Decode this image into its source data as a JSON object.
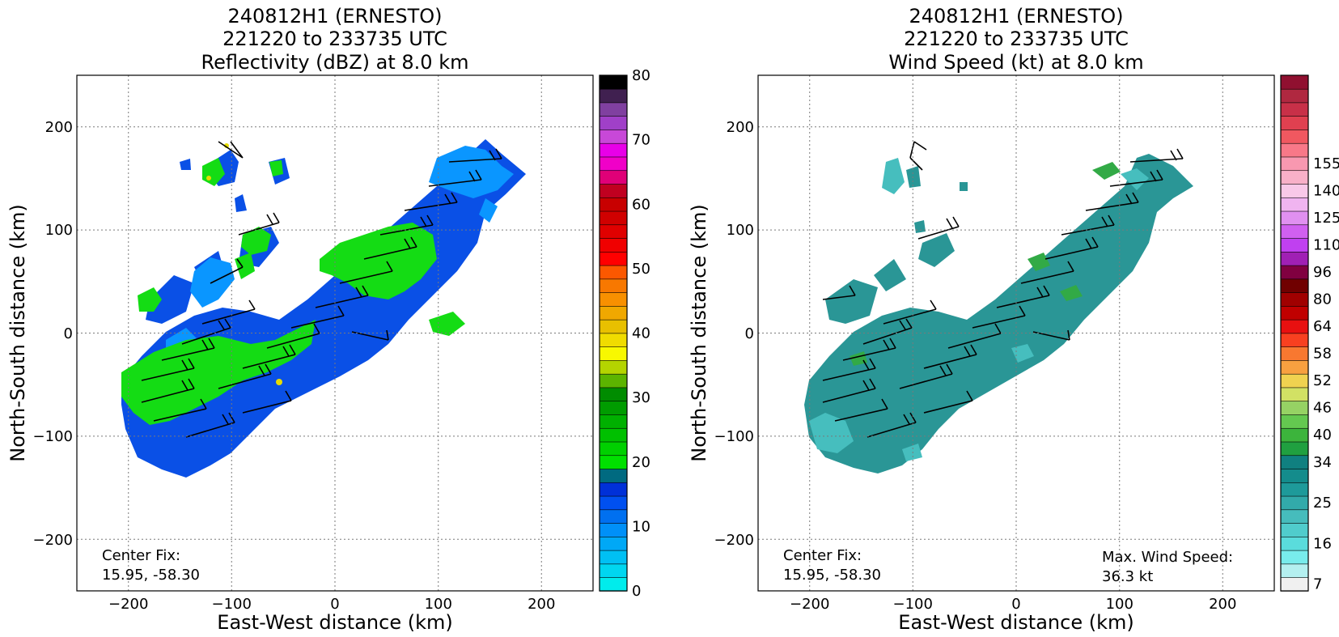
{
  "chart_data": [
    {
      "type": "heatmap",
      "title_lines": [
        "240812H1 (ERNESTO)",
        "221220 to 233735 UTC",
        "Reflectivity (dBZ) at 8.0 km"
      ],
      "xlabel": "East-West distance (km)",
      "ylabel": "North-South distance (km)",
      "xlim": [
        -250,
        250
      ],
      "ylim": [
        -250,
        250
      ],
      "xticks": [
        -200,
        -100,
        0,
        100,
        200
      ],
      "yticks": [
        -200,
        -100,
        0,
        100,
        200
      ],
      "xtick_labels": [
        "−200",
        "−100",
        "0",
        "100",
        "200"
      ],
      "ytick_labels": [
        "−200",
        "−100",
        "0",
        "100",
        "200"
      ],
      "grid": true,
      "annotations": {
        "center_fix_label": "Center Fix:",
        "center_fix_value": "15.95, -58.30"
      },
      "colorbar": {
        "min": 0,
        "max": 80,
        "tick_values": [
          0,
          10,
          20,
          30,
          40,
          50,
          60,
          70,
          80
        ],
        "tick_labels": [
          "0",
          "10",
          "20",
          "30",
          "40",
          "50",
          "60",
          "70",
          "80"
        ],
        "colors": [
          "#00ecec",
          "#00d6f0",
          "#00c0f4",
          "#00a8f6",
          "#0090f8",
          "#0070f0",
          "#0050f0",
          "#0030d8",
          "#006a80",
          "#00e000",
          "#00d000",
          "#00c000",
          "#00b000",
          "#009c00",
          "#008c00",
          "#5cb400",
          "#b4d400",
          "#f8f800",
          "#f0dc00",
          "#e8c000",
          "#f0a800",
          "#f89000",
          "#f87800",
          "#fc5800",
          "#ff0000",
          "#f00000",
          "#e00000",
          "#d00000",
          "#c80000",
          "#c00020",
          "#e00078",
          "#f000c8",
          "#e800e8",
          "#c848d8",
          "#a040c8",
          "#8040a0",
          "#402050",
          "#000000"
        ]
      },
      "field_colors": {
        "weak": "#0a50e6",
        "light": "#0a96ff",
        "moderate": "#14dc14",
        "strong": "#e6dc00"
      }
    },
    {
      "type": "heatmap",
      "title_lines": [
        "240812H1 (ERNESTO)",
        "221220 to 233735 UTC",
        "Wind Speed (kt) at 8.0 km"
      ],
      "xlabel": "East-West distance (km)",
      "ylabel": "North-South distance (km)",
      "xlim": [
        -250,
        250
      ],
      "ylim": [
        -250,
        250
      ],
      "xticks": [
        -200,
        -100,
        0,
        100,
        200
      ],
      "yticks": [
        -200,
        -100,
        0,
        100,
        200
      ],
      "xtick_labels": [
        "−200",
        "−100",
        "0",
        "100",
        "200"
      ],
      "ytick_labels": [
        "−200",
        "−100",
        "0",
        "100",
        "200"
      ],
      "grid": true,
      "annotations": {
        "center_fix_label": "Center Fix:",
        "center_fix_value": "15.95, -58.30",
        "max_wind_label": "Max. Wind Speed:",
        "max_wind_value": "36.3 kt"
      },
      "colorbar": {
        "tick_labels": [
          "7",
          "16",
          "25",
          "34",
          "40",
          "46",
          "52",
          "58",
          "64",
          "80",
          "96",
          "110",
          "125",
          "140",
          "155"
        ],
        "tick_bins": [
          0,
          3,
          6,
          9,
          11,
          13,
          15,
          17,
          19,
          21,
          23,
          25,
          27,
          29,
          31
        ],
        "colors": [
          "#f0f0f0",
          "#b4f0f0",
          "#78ecec",
          "#5adcdc",
          "#50cccc",
          "#46bcbc",
          "#32aaaa",
          "#1e9a9a",
          "#148c8c",
          "#108080",
          "#20a040",
          "#3cb43c",
          "#64c850",
          "#96d264",
          "#d2e164",
          "#f0d250",
          "#f8a040",
          "#f87830",
          "#f84020",
          "#e81010",
          "#c00000",
          "#a00000",
          "#700000",
          "#800040",
          "#a020b4",
          "#c040f0",
          "#d060f0",
          "#e090f0",
          "#f0b4f0",
          "#f8c8e8",
          "#f8b0c8",
          "#f898b0",
          "#f87888",
          "#f05860",
          "#e04050",
          "#c83048",
          "#b02840",
          "#901030"
        ]
      },
      "field_colors": {
        "base": "#2a9696",
        "light": "#46bebe",
        "strong": "#32aa46"
      }
    }
  ]
}
